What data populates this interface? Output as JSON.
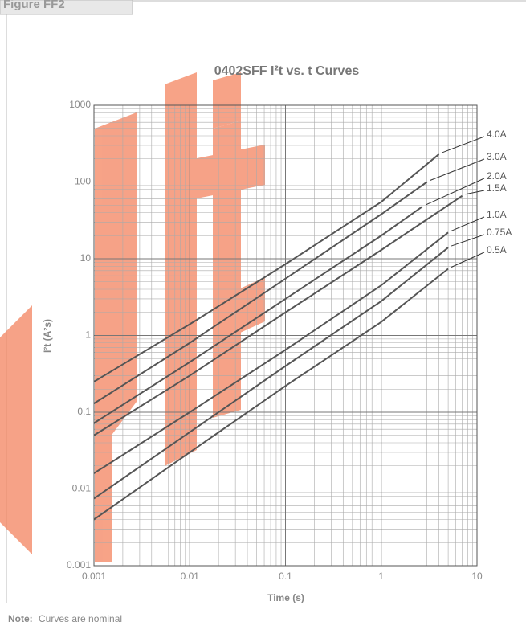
{
  "chart_data": {
    "type": "line",
    "figure_label": "Figure FF2",
    "title": "0402SFF I²t  vs. t Curves",
    "x_label": "Time (s)",
    "y_label": "I²t (A²s)",
    "note_label": "Note:",
    "note_text": "Curves are nominal",
    "log_x": true,
    "log_y": true,
    "grid": true,
    "xlim": [
      0.001,
      10
    ],
    "xticks": [
      0.001,
      0.01,
      0.1,
      1,
      10
    ],
    "ylim": [
      0.001,
      1000
    ],
    "yticks": [
      0.001,
      0.01,
      0.1,
      1,
      10,
      100,
      1000
    ],
    "series": [
      {
        "name": "4.0A",
        "color": "#555555",
        "x": [
          0.001,
          0.01,
          0.1,
          1,
          4
        ],
        "values": [
          0.25,
          1.4,
          8.5,
          55,
          230
        ]
      },
      {
        "name": "3.0A",
        "color": "#555555",
        "x": [
          0.001,
          0.01,
          0.1,
          1,
          3
        ],
        "values": [
          0.13,
          0.8,
          5.5,
          38,
          100
        ]
      },
      {
        "name": "2.0A",
        "color": "#555555",
        "x": [
          0.001,
          0.01,
          0.1,
          1,
          2.7
        ],
        "values": [
          0.072,
          0.45,
          3,
          20,
          48
        ]
      },
      {
        "name": "1.5A",
        "color": "#555555",
        "x": [
          0.001,
          0.01,
          0.1,
          1,
          7
        ],
        "values": [
          0.05,
          0.3,
          2,
          13,
          66
        ]
      },
      {
        "name": "1.0A",
        "color": "#555555",
        "x": [
          0.001,
          0.01,
          0.1,
          1,
          5
        ],
        "values": [
          0.016,
          0.1,
          0.65,
          4.5,
          22
        ]
      },
      {
        "name": "0.75A",
        "color": "#555555",
        "x": [
          0.001,
          0.01,
          0.1,
          1,
          5
        ],
        "values": [
          0.0075,
          0.055,
          0.4,
          2.8,
          14
        ]
      },
      {
        "name": "0.5A",
        "color": "#555555",
        "x": [
          0.001,
          0.01,
          0.1,
          1,
          5
        ],
        "values": [
          0.004,
          0.03,
          0.22,
          1.5,
          7.4
        ]
      }
    ]
  }
}
